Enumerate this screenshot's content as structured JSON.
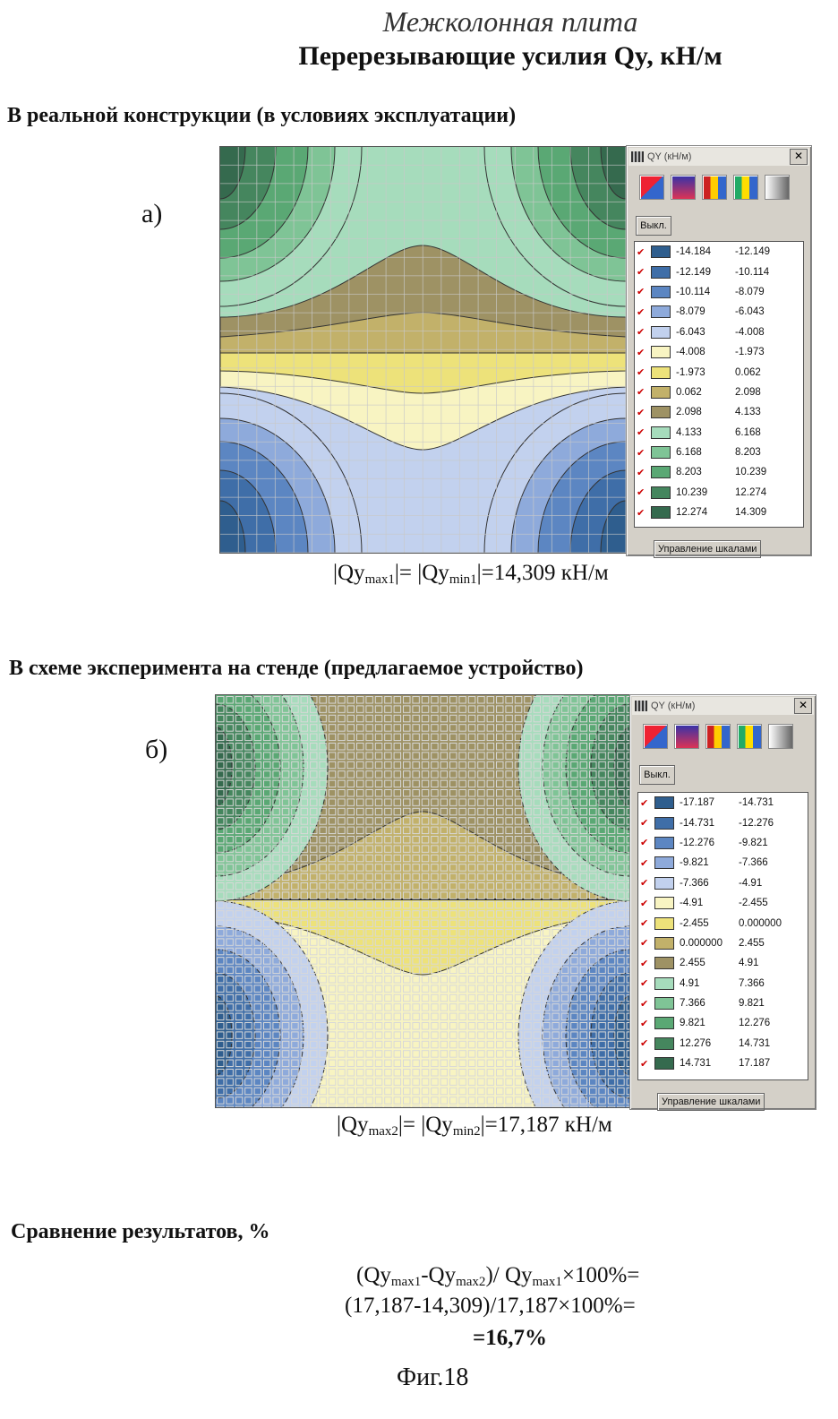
{
  "header": {
    "subtitle": "Межколонная плита",
    "title": "Перерезывающие усилия Qy, кН/м"
  },
  "section_a": {
    "heading": "В реальной конструкции (в условиях эксплуатации)",
    "letter": "а)",
    "window_title": "QY (кН/м)",
    "off_button": "Выкл.",
    "footer_button": "Управление шкалами",
    "legend": [
      {
        "from": "-14.184",
        "to": "-12.149",
        "color": "#2f5e8e"
      },
      {
        "from": "-12.149",
        "to": "-10.114",
        "color": "#3f6ea8"
      },
      {
        "from": "-10.114",
        "to": "-8.079",
        "color": "#5c86c2"
      },
      {
        "from": "-8.079",
        "to": "-6.043",
        "color": "#8eaadb"
      },
      {
        "from": "-6.043",
        "to": "-4.008",
        "color": "#c2d1ee"
      },
      {
        "from": "-4.008",
        "to": "-1.973",
        "color": "#f8f4c2"
      },
      {
        "from": "-1.973",
        "to": "0.062",
        "color": "#ede27a"
      },
      {
        "from": "0.062",
        "to": "2.098",
        "color": "#c2b16a"
      },
      {
        "from": "2.098",
        "to": "4.133",
        "color": "#9e9264"
      },
      {
        "from": "4.133",
        "to": "6.168",
        "color": "#a6dcbc"
      },
      {
        "from": "6.168",
        "to": "8.203",
        "color": "#7fc496"
      },
      {
        "from": "8.203",
        "to": "10.239",
        "color": "#5aa874"
      },
      {
        "from": "10.239",
        "to": "12.274",
        "color": "#45865e"
      },
      {
        "from": "12.274",
        "to": "14.309",
        "color": "#356a4e"
      }
    ],
    "result": {
      "q": "|Qy",
      "max": "max1",
      "mid": "|= |Qy",
      "min": "min1",
      "value": "|=14,309 кН/м"
    }
  },
  "section_b": {
    "heading": "В схеме эксперимента на стенде (предлагаемое устройство)",
    "letter": "б)",
    "window_title": "QY (кН/м)",
    "off_button": "Выкл.",
    "footer_button": "Управление шкалами",
    "legend": [
      {
        "from": "-17.187",
        "to": "-14.731",
        "color": "#2f5e8e"
      },
      {
        "from": "-14.731",
        "to": "-12.276",
        "color": "#3f6ea8"
      },
      {
        "from": "-12.276",
        "to": "-9.821",
        "color": "#5c86c2"
      },
      {
        "from": "-9.821",
        "to": "-7.366",
        "color": "#8eaadb"
      },
      {
        "from": "-7.366",
        "to": "-4.91",
        "color": "#c2d1ee"
      },
      {
        "from": "-4.91",
        "to": "-2.455",
        "color": "#f8f4c2"
      },
      {
        "from": "-2.455",
        "to": "0.000000",
        "color": "#ede27a"
      },
      {
        "from": "0.000000",
        "to": "2.455",
        "color": "#c2b16a"
      },
      {
        "from": "2.455",
        "to": "4.91",
        "color": "#9e9264"
      },
      {
        "from": "4.91",
        "to": "7.366",
        "color": "#a6dcbc"
      },
      {
        "from": "7.366",
        "to": "9.821",
        "color": "#7fc496"
      },
      {
        "from": "9.821",
        "to": "12.276",
        "color": "#5aa874"
      },
      {
        "from": "12.276",
        "to": "14.731",
        "color": "#45865e"
      },
      {
        "from": "14.731",
        "to": "17.187",
        "color": "#356a4e"
      }
    ],
    "result": {
      "q": "|Qy",
      "max": "max2",
      "mid": "|= |Qy",
      "min": "min2",
      "value": "|=17,187 кН/м"
    }
  },
  "comparison": {
    "heading": "Сравнение результатов, %",
    "line1": {
      "a": "(Qy",
      "s1": "max1",
      "b": "-Qy",
      "s2": "max2",
      "c": ")/ Qy",
      "s3": "max1",
      "d": "×100%="
    },
    "line2": "(17,187-14,309)/17,187×100%=",
    "line3": "=16,7%"
  },
  "figure_caption": "Фиг.18",
  "tool_icons": [
    "gradient-red-blue-icon",
    "gradient-blue-red-icon",
    "stripes-red-yellow-icon",
    "stripes-green-yellow-icon",
    "grayscale-icon"
  ]
}
